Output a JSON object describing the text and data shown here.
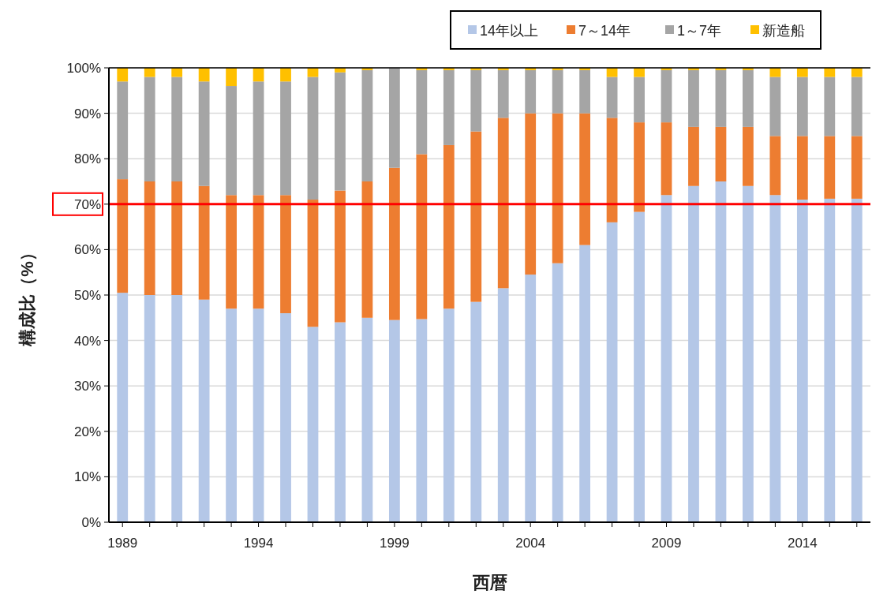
{
  "chart_data": {
    "type": "bar",
    "stacked": true,
    "xlabel": "西暦",
    "ylabel": "構成比（%）",
    "categories": [
      "1989",
      null,
      null,
      null,
      null,
      "1994",
      null,
      null,
      null,
      null,
      "1999",
      null,
      null,
      null,
      null,
      "2004",
      null,
      null,
      null,
      null,
      "2009",
      null,
      null,
      null,
      null,
      "2014",
      null,
      null
    ],
    "series": [
      {
        "name": "14年以上",
        "color": "#b4c7e7",
        "values": [
          50.5,
          50,
          50,
          49,
          47,
          47,
          46,
          43,
          44,
          45,
          44.5,
          44.7,
          47,
          48.5,
          51.5,
          54.5,
          57,
          61,
          66,
          68.3,
          72,
          74,
          75,
          74,
          72,
          71,
          71.2,
          71.2
        ]
      },
      {
        "name": "7～14年",
        "color": "#ed7d31",
        "values": [
          25,
          25,
          25,
          25,
          25,
          25,
          26,
          28,
          29,
          30,
          33.5,
          36.3,
          36,
          37.5,
          37.5,
          35.5,
          33,
          29,
          23,
          19.7,
          16,
          13,
          12,
          13,
          13,
          14,
          13.8,
          13.8
        ]
      },
      {
        "name": "1～7年",
        "color": "#a5a5a5",
        "values": [
          21.5,
          23,
          23,
          23,
          24,
          25,
          25,
          27,
          26,
          24.5,
          22,
          18.5,
          16.5,
          13.5,
          10.5,
          9.5,
          9.5,
          9.5,
          9,
          10,
          11.5,
          12.5,
          12.5,
          12.5,
          13,
          13,
          13,
          13
        ]
      },
      {
        "name": "新造船",
        "color": "#ffc000",
        "values": [
          3,
          2,
          2,
          3,
          4,
          3,
          3,
          2,
          1,
          0.5,
          0,
          0.5,
          0.5,
          0.5,
          0.5,
          0.5,
          0.5,
          0.5,
          2,
          2,
          0.5,
          0.5,
          0.5,
          0.5,
          2,
          2,
          2,
          2
        ]
      }
    ],
    "ylim": [
      0,
      100
    ],
    "yticks": [
      {
        "value": 0,
        "label": "0%"
      },
      {
        "value": 10,
        "label": "10%"
      },
      {
        "value": 20,
        "label": "20%"
      },
      {
        "value": 30,
        "label": "30%"
      },
      {
        "value": 40,
        "label": "40%"
      },
      {
        "value": 50,
        "label": "50%"
      },
      {
        "value": 60,
        "label": "60%"
      },
      {
        "value": 70,
        "label": "70%"
      },
      {
        "value": 80,
        "label": "80%"
      },
      {
        "value": 90,
        "label": "90%"
      },
      {
        "value": 100,
        "label": "100%"
      }
    ],
    "ref_lines": [
      {
        "axis": "y",
        "value": 70,
        "color": "#ff0000"
      }
    ],
    "grid": "y",
    "legend": "top right"
  }
}
